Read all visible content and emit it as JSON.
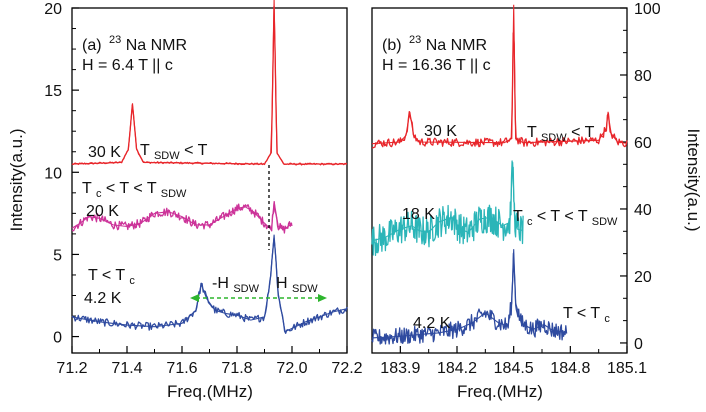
{
  "chart_data": [
    {
      "type": "line",
      "panel_label": "(a)",
      "title": {
        "sup": "23",
        "main": "Na NMR"
      },
      "field": "H = 6.4 T || c",
      "xlabel": "Freq.(MHz)",
      "ylabel": "Intensity(a.u.)",
      "xlim": [
        71.2,
        72.2
      ],
      "ylim": [
        -1,
        20
      ],
      "x_ticks": [
        "71.2",
        "71.4",
        "71.6",
        "71.8",
        "72.0",
        "72.2"
      ],
      "y_ticks": [
        "0",
        "5",
        "10",
        "15",
        "20"
      ],
      "annotations": {
        "regime_high": {
          "main": "T",
          "sub": "SDW",
          "rest": " < T"
        },
        "regime_mid": {
          "pre": "T",
          "pre_sub": "c",
          "mid": "<  T < T",
          "post_sub": "SDW"
        },
        "regime_low": {
          "pre": "T < T",
          "sub": "c"
        },
        "neg_h": {
          "main": "-H",
          "sub": "SDW"
        },
        "pos_h": {
          "main": "H",
          "sub": "SDW"
        }
      },
      "series": [
        {
          "name": "30 K",
          "color": "#e8262b",
          "noise": 0.05,
          "x": [
            71.2,
            71.38,
            71.405,
            71.42,
            71.435,
            71.46,
            71.9,
            71.925,
            71.935,
            71.945,
            71.97,
            72.2
          ],
          "y": [
            10.5,
            10.6,
            11.4,
            14.2,
            11.4,
            10.6,
            10.5,
            11.2,
            20.5,
            11.2,
            10.5,
            10.5
          ]
        },
        {
          "name": "20 K",
          "color": "#cc3399",
          "noise": 0.25,
          "x": [
            71.2,
            71.23,
            71.26,
            71.3,
            71.35,
            71.4,
            71.45,
            71.5,
            71.55,
            71.6,
            71.65,
            71.7,
            71.75,
            71.8,
            71.83,
            71.86,
            71.9,
            71.925,
            71.935,
            71.95,
            71.97,
            72.0
          ],
          "y": [
            6.6,
            6.9,
            7.3,
            7.2,
            6.8,
            6.7,
            6.9,
            7.5,
            7.6,
            7.3,
            6.8,
            6.8,
            7.3,
            7.8,
            7.9,
            7.6,
            6.9,
            6.5,
            8.2,
            6.7,
            6.5,
            6.9
          ]
        },
        {
          "name": "4.2 K",
          "color": "#2f4ba0",
          "noise": 0.22,
          "x": [
            71.2,
            71.3,
            71.4,
            71.5,
            71.6,
            71.65,
            71.67,
            71.69,
            71.72,
            71.76,
            71.8,
            71.85,
            71.9,
            71.92,
            71.935,
            71.95,
            71.975,
            72.0,
            72.05,
            72.1,
            72.15,
            72.2
          ],
          "y": [
            1.2,
            0.9,
            0.7,
            0.6,
            0.8,
            1.6,
            3.2,
            2.3,
            1.6,
            1.4,
            1.3,
            1.0,
            1.2,
            3.3,
            6.2,
            2.6,
            0.3,
            0.5,
            0.9,
            1.2,
            1.5,
            1.7
          ]
        }
      ]
    },
    {
      "type": "line",
      "panel_label": "(b)",
      "title": {
        "sup": "23",
        "main": "Na NMR"
      },
      "field": "H = 16.36 T || c",
      "xlabel": "Freq.(MHz)",
      "ylabel": "Intensity(a.u.)",
      "xlim": [
        183.75,
        185.1
      ],
      "ylim": [
        -3,
        100
      ],
      "x_ticks": [
        "183.9",
        "184.2",
        "184.5",
        "184.8",
        "185.1"
      ],
      "y_ticks": [
        "0",
        "20",
        "40",
        "60",
        "80",
        "100"
      ],
      "annotations": {
        "regime_high": {
          "main": "T",
          "sub": "SDW",
          "rest": " < T"
        },
        "regime_mid": {
          "pre": "T",
          "pre_sub": "c",
          "mid": "<  T < T",
          "post_sub": "SDW"
        },
        "regime_low": {
          "main": "T < T",
          "sub": "c"
        }
      },
      "series": [
        {
          "name": "30 K",
          "color": "#e8262b",
          "noise": 0.25,
          "x": [
            183.75,
            183.9,
            183.93,
            183.95,
            183.97,
            184.0,
            184.45,
            184.49,
            184.5,
            184.51,
            184.55,
            184.95,
            184.99,
            185.0,
            185.01,
            185.05,
            185.1
          ],
          "y": [
            59.5,
            60.0,
            62.0,
            69.0,
            62.0,
            60.0,
            59.8,
            61.0,
            101.0,
            61.0,
            59.8,
            60.5,
            64.0,
            69.0,
            63.0,
            60.0,
            59.6
          ]
        },
        {
          "name": "18 K",
          "color": "#2bb5b8",
          "noise": 0.9,
          "x": [
            183.75,
            183.82,
            183.9,
            183.96,
            184.0,
            184.05,
            184.1,
            184.17,
            184.22,
            184.26,
            184.32,
            184.38,
            184.44,
            184.48,
            184.495,
            184.505,
            184.52,
            184.55
          ],
          "y": [
            30.5,
            31.5,
            34.0,
            35.0,
            33.5,
            33.0,
            36.0,
            37.5,
            34.0,
            33.0,
            37.0,
            37.5,
            35.0,
            36.0,
            54.0,
            37.0,
            34.0,
            33.5
          ]
        },
        {
          "name": "4.2 K",
          "color": "#2f4ba0",
          "noise": 0.5,
          "x": [
            183.75,
            183.9,
            184.0,
            184.1,
            184.2,
            184.28,
            184.35,
            184.42,
            184.47,
            184.49,
            184.5,
            184.51,
            184.54,
            184.6,
            184.66,
            184.7,
            184.78
          ],
          "y": [
            1.5,
            2.0,
            2.5,
            3.0,
            4.0,
            6.0,
            9.0,
            6.0,
            5.0,
            12.0,
            28.0,
            12.0,
            6.0,
            4.0,
            5.5,
            4.0,
            3.0
          ]
        }
      ]
    }
  ]
}
